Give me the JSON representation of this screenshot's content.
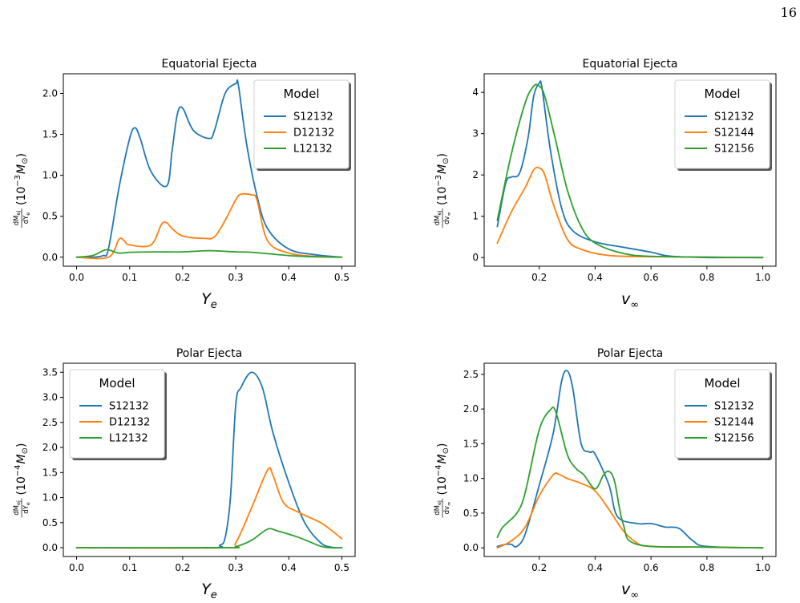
{
  "page_number": "16",
  "chart_data": [
    {
      "type": "line",
      "title": "Equatorial Ejecta",
      "xlabel": "Y_e",
      "ylabel": "dM_ej/dY_e (10^-3 M_⊙)",
      "ylabel_parts": {
        "num": "dM",
        "num_sub": "ej",
        "den": "dY",
        "den_sub": "e",
        "unit": "(10",
        "exp": "−3",
        "unit_m": "M",
        "unit_sub": "⊙",
        "close": ")"
      },
      "xlabel_parts": {
        "main": "Y",
        "sub": "e"
      },
      "xlim": [
        -0.025,
        0.525
      ],
      "ylim": [
        -0.11,
        2.24
      ],
      "xticks": [
        0.0,
        0.1,
        0.2,
        0.3,
        0.4,
        0.5
      ],
      "xticklabels": [
        "0.0",
        "0.1",
        "0.2",
        "0.3",
        "0.4",
        "0.5"
      ],
      "yticks": [
        0.0,
        0.5,
        1.0,
        1.5,
        2.0
      ],
      "yticklabels": [
        "0.0",
        "0.5",
        "1.0",
        "1.5",
        "2.0"
      ],
      "grid": false,
      "legend": {
        "title": "Model",
        "position": "top-right"
      },
      "series": [
        {
          "name": "S12132",
          "color": "#1f77b4",
          "x": [
            0.0,
            0.03,
            0.05,
            0.06,
            0.08,
            0.1,
            0.11,
            0.12,
            0.14,
            0.17,
            0.18,
            0.19,
            0.2,
            0.22,
            0.25,
            0.26,
            0.28,
            0.3,
            0.305,
            0.32,
            0.34,
            0.36,
            0.4,
            0.45,
            0.5
          ],
          "y": [
            0.0,
            0.0,
            0.02,
            0.1,
            0.85,
            1.45,
            1.58,
            1.45,
            1.05,
            0.87,
            1.3,
            1.75,
            1.82,
            1.55,
            1.45,
            1.55,
            2.0,
            2.12,
            2.1,
            1.4,
            0.75,
            0.35,
            0.1,
            0.03,
            0.0
          ]
        },
        {
          "name": "D12132",
          "color": "#ff7f0e",
          "x": [
            0.0,
            0.06,
            0.08,
            0.09,
            0.1,
            0.14,
            0.16,
            0.17,
            0.18,
            0.2,
            0.24,
            0.26,
            0.28,
            0.3,
            0.31,
            0.33,
            0.34,
            0.36,
            0.4,
            0.45,
            0.5
          ],
          "y": [
            0.0,
            0.0,
            0.22,
            0.2,
            0.15,
            0.15,
            0.4,
            0.42,
            0.35,
            0.26,
            0.23,
            0.25,
            0.45,
            0.7,
            0.77,
            0.76,
            0.7,
            0.2,
            0.05,
            0.01,
            0.0
          ]
        },
        {
          "name": "L12132",
          "color": "#2ca02c",
          "x": [
            0.0,
            0.03,
            0.05,
            0.06,
            0.08,
            0.1,
            0.15,
            0.2,
            0.25,
            0.3,
            0.33,
            0.4,
            0.45,
            0.5
          ],
          "y": [
            0.0,
            0.02,
            0.08,
            0.09,
            0.05,
            0.06,
            0.065,
            0.065,
            0.08,
            0.065,
            0.06,
            0.02,
            0.005,
            0.0
          ]
        }
      ]
    },
    {
      "type": "line",
      "title": "Equatorial Ejecta",
      "xlabel": "v_∞",
      "ylabel": "dM_ej/dv_∞ (10^-3 M_⊙)",
      "ylabel_parts": {
        "num": "dM",
        "num_sub": "ej",
        "den": "dv",
        "den_sub": "∞",
        "unit": "(10",
        "exp": "−3",
        "unit_m": "M",
        "unit_sub": "⊙",
        "close": ")"
      },
      "xlabel_parts": {
        "main": "v",
        "sub": "∞"
      },
      "xlim": [
        0.003,
        1.047
      ],
      "ylim": [
        -0.21,
        4.45
      ],
      "xticks": [
        0.2,
        0.4,
        0.6,
        0.8,
        1.0
      ],
      "xticklabels": [
        "0.2",
        "0.4",
        "0.6",
        "0.8",
        "1.0"
      ],
      "yticks": [
        0,
        1,
        2,
        3,
        4
      ],
      "yticklabels": [
        "0",
        "1",
        "2",
        "3",
        "4"
      ],
      "grid": false,
      "legend": {
        "title": "Model",
        "position": "top-right"
      },
      "series": [
        {
          "name": "S12132",
          "color": "#1f77b4",
          "x": [
            0.05,
            0.08,
            0.1,
            0.13,
            0.16,
            0.18,
            0.2,
            0.21,
            0.24,
            0.28,
            0.32,
            0.4,
            0.5,
            0.6,
            0.65,
            0.7,
            0.8,
            1.0
          ],
          "y": [
            0.75,
            1.8,
            1.95,
            2.05,
            2.9,
            3.9,
            4.22,
            4.1,
            2.6,
            1.2,
            0.65,
            0.38,
            0.25,
            0.13,
            0.05,
            0.02,
            0.0,
            0.0
          ]
        },
        {
          "name": "S12144",
          "color": "#ff7f0e",
          "x": [
            0.05,
            0.1,
            0.15,
            0.18,
            0.2,
            0.22,
            0.25,
            0.3,
            0.35,
            0.45,
            0.6,
            0.8,
            1.0
          ],
          "y": [
            0.35,
            1.1,
            1.7,
            2.12,
            2.17,
            2.0,
            1.3,
            0.45,
            0.2,
            0.05,
            0.02,
            0.01,
            0.0
          ]
        },
        {
          "name": "S12156",
          "color": "#2ca02c",
          "x": [
            0.05,
            0.1,
            0.15,
            0.18,
            0.2,
            0.22,
            0.26,
            0.3,
            0.35,
            0.4,
            0.5,
            0.6,
            0.8,
            1.0
          ],
          "y": [
            0.9,
            2.5,
            3.75,
            4.15,
            4.15,
            3.9,
            2.8,
            1.65,
            0.75,
            0.35,
            0.1,
            0.03,
            0.01,
            0.0
          ]
        }
      ]
    },
    {
      "type": "line",
      "title": "Polar Ejecta",
      "xlabel": "Y_e",
      "ylabel": "dM_ej/dY_e (10^-4 M_⊙)",
      "ylabel_parts": {
        "num": "dM",
        "num_sub": "ej",
        "den": "dY",
        "den_sub": "e",
        "unit": "(10",
        "exp": "−4",
        "unit_m": "M",
        "unit_sub": "⊙",
        "close": ")"
      },
      "xlabel_parts": {
        "main": "Y",
        "sub": "e"
      },
      "xlim": [
        -0.025,
        0.525
      ],
      "ylim": [
        -0.175,
        3.68
      ],
      "xticks": [
        0.0,
        0.1,
        0.2,
        0.3,
        0.4,
        0.5
      ],
      "xticklabels": [
        "0.0",
        "0.1",
        "0.2",
        "0.3",
        "0.4",
        "0.5"
      ],
      "yticks": [
        0.0,
        0.5,
        1.0,
        1.5,
        2.0,
        2.5,
        3.0,
        3.5
      ],
      "yticklabels": [
        "0.0",
        "0.5",
        "1.0",
        "1.5",
        "2.0",
        "2.5",
        "3.0",
        "3.5"
      ],
      "grid": false,
      "legend": {
        "title": "Model",
        "position": "top-left"
      },
      "series": [
        {
          "name": "S12132",
          "color": "#1f77b4",
          "x": [
            0.0,
            0.25,
            0.27,
            0.28,
            0.29,
            0.3,
            0.31,
            0.33,
            0.35,
            0.37,
            0.4,
            0.43,
            0.46,
            0.48,
            0.5
          ],
          "y": [
            0.0,
            0.0,
            0.05,
            0.2,
            1.0,
            2.85,
            3.2,
            3.5,
            3.2,
            2.3,
            1.3,
            0.5,
            0.1,
            0.01,
            0.0
          ]
        },
        {
          "name": "D12132",
          "color": "#ff7f0e",
          "x": [
            0.0,
            0.28,
            0.3,
            0.33,
            0.36,
            0.37,
            0.39,
            0.42,
            0.46,
            0.48,
            0.5
          ],
          "y": [
            0.0,
            0.0,
            0.1,
            0.8,
            1.55,
            1.45,
            0.9,
            0.7,
            0.5,
            0.35,
            0.18
          ]
        },
        {
          "name": "L12132",
          "color": "#2ca02c",
          "x": [
            0.0,
            0.28,
            0.3,
            0.33,
            0.36,
            0.38,
            0.42,
            0.46,
            0.48,
            0.5
          ],
          "y": [
            0.0,
            0.0,
            0.02,
            0.15,
            0.37,
            0.33,
            0.2,
            0.03,
            0.0,
            0.0
          ]
        }
      ]
    },
    {
      "type": "line",
      "title": "Polar Ejecta",
      "xlabel": "v_∞",
      "ylabel": "dM_ej/dv_∞ (10^-4 M_⊙)",
      "ylabel_parts": {
        "num": "dM",
        "num_sub": "ej",
        "den": "dv",
        "den_sub": "∞",
        "unit": "(10",
        "exp": "−4",
        "unit_m": "M",
        "unit_sub": "⊙",
        "close": ")"
      },
      "xlabel_parts": {
        "main": "v",
        "sub": "∞"
      },
      "xlim": [
        0.003,
        1.047
      ],
      "ylim": [
        -0.125,
        2.66
      ],
      "xticks": [
        0.2,
        0.4,
        0.6,
        0.8,
        1.0
      ],
      "xticklabels": [
        "0.2",
        "0.4",
        "0.6",
        "0.8",
        "1.0"
      ],
      "yticks": [
        0.0,
        0.5,
        1.0,
        1.5,
        2.0,
        2.5
      ],
      "yticklabels": [
        "0.0",
        "0.5",
        "1.0",
        "1.5",
        "2.0",
        "2.5"
      ],
      "grid": false,
      "legend": {
        "title": "Model",
        "position": "top-right"
      },
      "series": [
        {
          "name": "S12132",
          "color": "#1f77b4",
          "x": [
            0.05,
            0.08,
            0.1,
            0.12,
            0.15,
            0.2,
            0.25,
            0.28,
            0.3,
            0.32,
            0.35,
            0.38,
            0.4,
            0.45,
            0.48,
            0.55,
            0.6,
            0.65,
            0.7,
            0.75,
            0.8,
            1.0
          ],
          "y": [
            0.02,
            0.05,
            0.05,
            0.02,
            0.2,
            0.9,
            1.65,
            2.4,
            2.55,
            2.3,
            1.5,
            1.38,
            1.35,
            0.9,
            0.45,
            0.35,
            0.35,
            0.3,
            0.28,
            0.1,
            0.02,
            0.0
          ]
        },
        {
          "name": "S12144",
          "color": "#ff7f0e",
          "x": [
            0.05,
            0.1,
            0.15,
            0.2,
            0.25,
            0.27,
            0.3,
            0.35,
            0.4,
            0.45,
            0.5,
            0.55,
            0.6,
            0.8,
            1.0
          ],
          "y": [
            0.0,
            0.1,
            0.3,
            0.75,
            1.05,
            1.06,
            1.0,
            0.93,
            0.82,
            0.55,
            0.25,
            0.07,
            0.02,
            0.01,
            0.0
          ]
        },
        {
          "name": "S12156",
          "color": "#2ca02c",
          "x": [
            0.05,
            0.07,
            0.12,
            0.15,
            0.2,
            0.24,
            0.26,
            0.3,
            0.33,
            0.36,
            0.4,
            0.43,
            0.45,
            0.47,
            0.5,
            0.55,
            0.8,
            1.0
          ],
          "y": [
            0.15,
            0.3,
            0.5,
            0.8,
            1.7,
            1.99,
            1.95,
            1.35,
            1.15,
            1.05,
            0.85,
            1.05,
            1.1,
            0.95,
            0.35,
            0.05,
            0.01,
            0.0
          ]
        }
      ]
    }
  ]
}
